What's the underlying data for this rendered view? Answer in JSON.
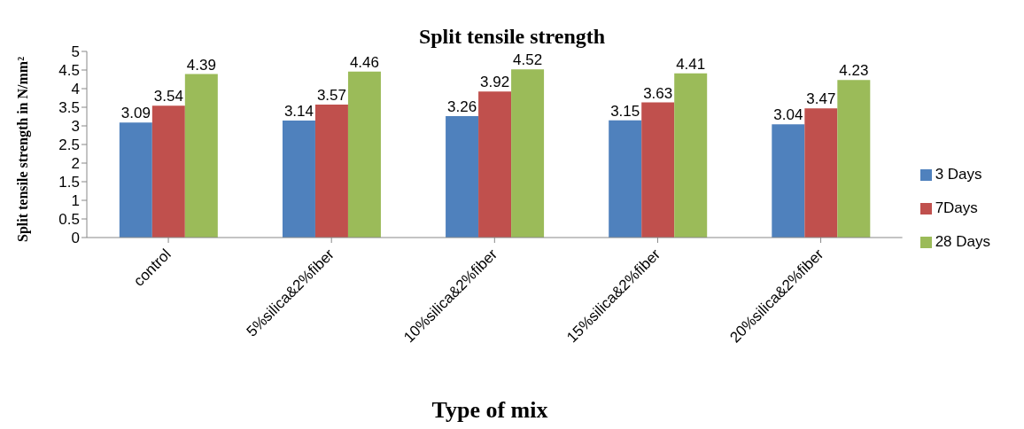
{
  "chart_data": {
    "type": "bar",
    "title": "Split tensile strength",
    "xlabel": "Type of mix",
    "ylabel": "Split tensile strength in N/mm²",
    "categories": [
      "control",
      "5%silica&2%fiber",
      "10%silica&2%fiber",
      "15%silica&2%fiber",
      "20%silica&2%fiber"
    ],
    "series": [
      {
        "name": "3 Days",
        "color": "#4f81bd",
        "values": [
          3.09,
          3.14,
          3.26,
          3.15,
          3.04
        ]
      },
      {
        "name": "7Days",
        "color": "#c0504d",
        "values": [
          3.54,
          3.57,
          3.92,
          3.63,
          3.47
        ]
      },
      {
        "name": "28 Days",
        "color": "#9bbb59",
        "values": [
          4.39,
          4.46,
          4.52,
          4.41,
          4.23
        ]
      }
    ],
    "ylim": [
      0,
      5
    ],
    "yticks": [
      0,
      0.5,
      1,
      1.5,
      2,
      2.5,
      3,
      3.5,
      4,
      4.5,
      5
    ],
    "grid": false,
    "legend": "right",
    "data_labels": true
  }
}
